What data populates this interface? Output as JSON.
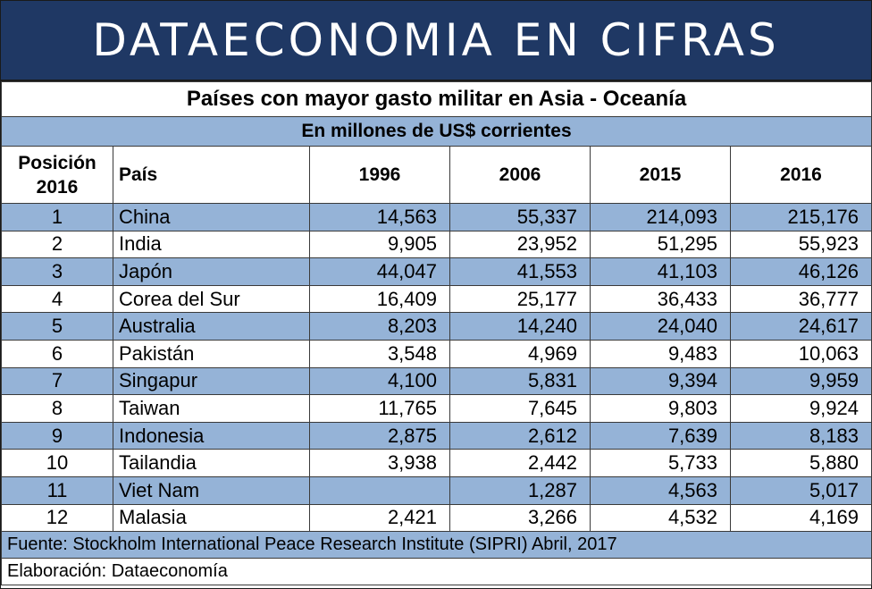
{
  "banner": "DATAECONOMIA EN CIFRAS",
  "chart_data": {
    "type": "table",
    "title": "Países con mayor gasto militar en Asia - Oceanía",
    "subtitle": "En millones de US$ corrientes",
    "columns": [
      "Posición 2016",
      "País",
      "1996",
      "2006",
      "2015",
      "2016"
    ],
    "header": {
      "position_line1": "Posición",
      "position_line2": "2016",
      "country": "País",
      "years": [
        "1996",
        "2006",
        "2015",
        "2016"
      ]
    },
    "rows": [
      {
        "position": "1",
        "country": "China",
        "values": [
          "14,563",
          "55,337",
          "214,093",
          "215,176"
        ]
      },
      {
        "position": "2",
        "country": "India",
        "values": [
          "9,905",
          "23,952",
          "51,295",
          "55,923"
        ]
      },
      {
        "position": "3",
        "country": "Japón",
        "values": [
          "44,047",
          "41,553",
          "41,103",
          "46,126"
        ]
      },
      {
        "position": "4",
        "country": "Corea del Sur",
        "values": [
          "16,409",
          "25,177",
          "36,433",
          "36,777"
        ]
      },
      {
        "position": "5",
        "country": "Australia",
        "values": [
          "8,203",
          "14,240",
          "24,040",
          "24,617"
        ]
      },
      {
        "position": "6",
        "country": "Pakistán",
        "values": [
          "3,548",
          "4,969",
          "9,483",
          "10,063"
        ]
      },
      {
        "position": "7",
        "country": "Singapur",
        "values": [
          "4,100",
          "5,831",
          "9,394",
          "9,959"
        ]
      },
      {
        "position": "8",
        "country": "Taiwan",
        "values": [
          "11,765",
          "7,645",
          "9,803",
          "9,924"
        ]
      },
      {
        "position": "9",
        "country": "Indonesia",
        "values": [
          "2,875",
          "2,612",
          "7,639",
          "8,183"
        ]
      },
      {
        "position": "10",
        "country": "Tailandia",
        "values": [
          "3,938",
          "2,442",
          "5,733",
          "5,880"
        ]
      },
      {
        "position": "11",
        "country": "Viet Nam",
        "values": [
          "",
          "1,287",
          "4,563",
          "5,017"
        ]
      },
      {
        "position": "12",
        "country": "Malasia",
        "values": [
          "2,421",
          "3,266",
          "4,532",
          "4,169"
        ]
      }
    ]
  },
  "footer": {
    "source": "Fuente: Stockholm International Peace Research Institute (SIPRI) Abril, 2017",
    "credit": "Elaboración: Dataeconomía"
  },
  "colors": {
    "banner_bg": "#1f3864",
    "stripe": "#95b3d7",
    "text": "#000000",
    "banner_text": "#ffffff"
  }
}
